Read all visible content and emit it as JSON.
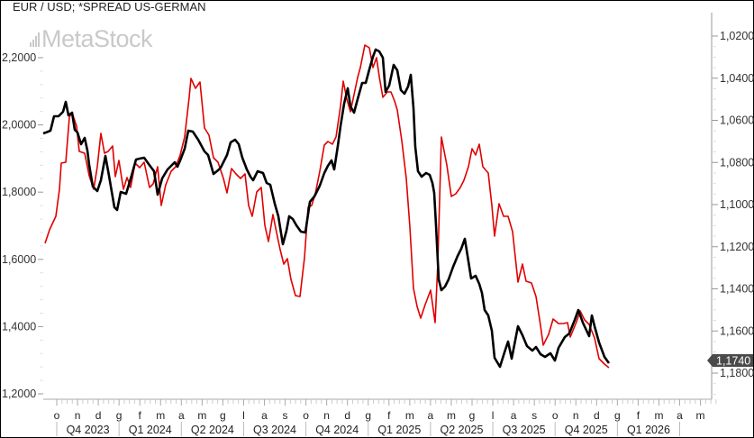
{
  "header": {
    "title": "EUR / USD; *SPREAD US-GERMAN",
    "watermark": "MetaStock"
  },
  "colors": {
    "eurusd_line": "#000000",
    "spread_line": "#e00000",
    "last_value_badge": "#4a4a4a",
    "axis": "#999999"
  },
  "left_axis": {
    "ticks": [
      "2,2000",
      "2,0000",
      "1,8000",
      "1,6000",
      "1,4000",
      "1,2000"
    ]
  },
  "right_axis": {
    "ticks": [
      "1,0200",
      "1,0400",
      "1,0600",
      "1,0800",
      "1,1000",
      "1,1200",
      "1,1400",
      "1,1600",
      "1,1800"
    ],
    "last_value": "1,1740"
  },
  "x_axis": {
    "months": [
      "o",
      "n",
      "d",
      "g",
      "f",
      "m",
      "a",
      "m",
      "g",
      "l",
      "a",
      "s",
      "o",
      "n",
      "d",
      "g",
      "f",
      "m",
      "a",
      "m",
      "g",
      "l",
      "a",
      "s",
      "o",
      "n",
      "d",
      "g",
      "f",
      "m",
      "a",
      "m"
    ],
    "quarters": [
      "Q4 2023",
      "Q1 2024",
      "Q2 2024",
      "Q3 2024",
      "Q4 2024",
      "Q1 2025",
      "Q2 2025",
      "Q3 2025",
      "Q4 2025",
      "Q1 2026"
    ]
  },
  "chart_data": {
    "type": "line",
    "title": "EUR / USD; *SPREAD US-GERMAN",
    "xlabel": "",
    "ylabel_left": "*SPREAD US-GERMAN",
    "ylabel_right": "EUR / USD (inverted)",
    "ylim_left": [
      1.2,
      2.25
    ],
    "ylim_right_inverted": [
      1.015,
      1.185
    ],
    "grid": false,
    "legend": "none",
    "x": [
      "2023-10",
      "2023-11",
      "2023-12",
      "2024-01",
      "2024-02",
      "2024-03",
      "2024-04",
      "2024-05",
      "2024-06",
      "2024-07",
      "2024-08",
      "2024-09",
      "2024-10",
      "2024-11",
      "2024-12",
      "2025-01",
      "2025-02",
      "2025-03",
      "2025-04",
      "2025-05",
      "2025-06",
      "2025-07",
      "2025-08",
      "2025-09",
      "2025-10",
      "2025-11",
      "2025-12"
    ],
    "series": [
      {
        "name": "*SPREAD US-GERMAN",
        "axis": "left",
        "color": "#e00000",
        "values": [
          1.66,
          1.9,
          2.02,
          1.88,
          1.92,
          1.84,
          1.86,
          1.98,
          2.13,
          1.87,
          1.83,
          1.65,
          1.51,
          1.75,
          1.97,
          2.12,
          2.23,
          2.12,
          1.55,
          1.45,
          1.96,
          1.84,
          1.93,
          1.56,
          1.37,
          1.43,
          1.29
        ]
      },
      {
        "name": "EUR / USD",
        "axis": "right_inverted",
        "color": "#000000",
        "values": [
          1.06,
          1.054,
          1.056,
          1.085,
          1.082,
          1.086,
          1.074,
          1.078,
          1.072,
          1.098,
          1.108,
          1.114,
          1.088,
          1.058,
          1.043,
          1.026,
          1.045,
          1.08,
          1.134,
          1.124,
          1.142,
          1.163,
          1.16,
          1.168,
          1.162,
          1.154,
          1.174
        ]
      }
    ],
    "last_value_label": "1,1740"
  }
}
